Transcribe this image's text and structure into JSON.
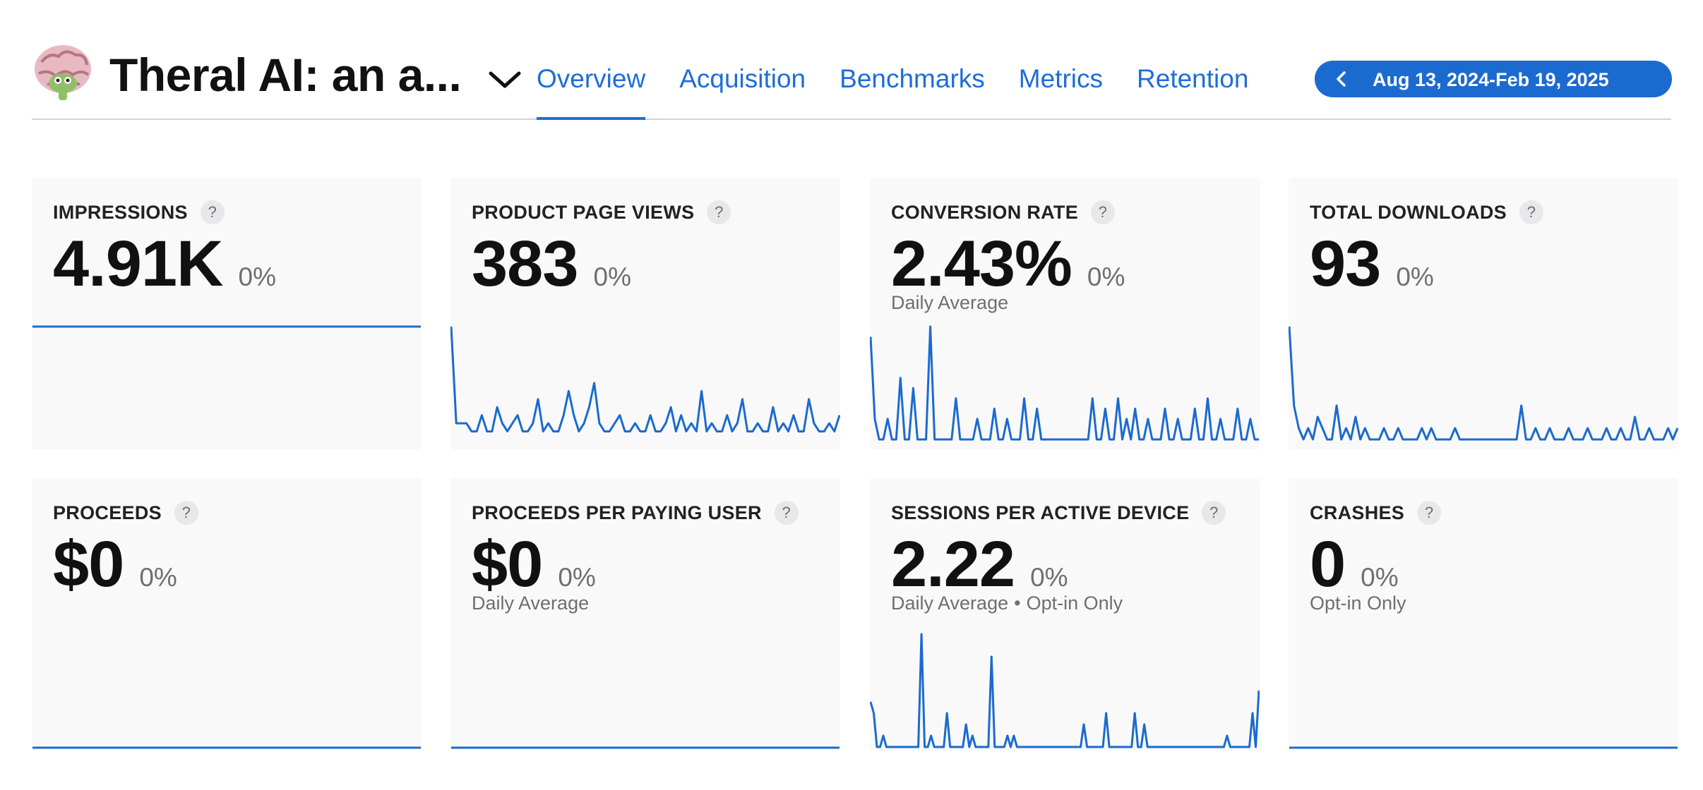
{
  "app": {
    "title": "Theral AI: an a...",
    "icon": "brain-emoji-icon"
  },
  "tabs": [
    {
      "label": "Overview",
      "active": true
    },
    {
      "label": "Acquisition",
      "active": false
    },
    {
      "label": "Benchmarks",
      "active": false
    },
    {
      "label": "Metrics",
      "active": false
    },
    {
      "label": "Retention",
      "active": false
    }
  ],
  "date_range": {
    "label": "Aug 13, 2024-Feb 19, 2025"
  },
  "colors": {
    "accent": "#1b6ad0",
    "card_bg": "#f9f9f9",
    "muted": "#6e6e73"
  },
  "help_glyph": "?",
  "cards": [
    {
      "label": "IMPRESSIONS",
      "value": "4.91K",
      "change": "0%",
      "note": "",
      "spark": [
        16,
        16,
        16,
        16,
        16,
        16,
        16,
        16,
        16,
        16,
        16,
        16,
        16,
        16,
        16,
        16,
        16,
        16,
        16,
        16,
        16,
        16,
        16,
        16,
        16,
        16,
        16,
        16,
        16,
        16,
        16,
        16,
        16,
        16,
        16,
        16,
        16,
        16,
        16,
        16,
        16,
        16,
        16,
        16,
        16,
        16,
        16,
        16,
        16,
        16,
        16,
        16,
        16,
        16,
        16,
        16,
        16,
        16,
        16,
        16,
        16,
        16,
        16,
        16,
        16,
        16,
        16,
        16,
        16,
        16,
        16,
        16,
        16,
        16,
        16,
        16,
        16,
        16,
        16,
        16,
        16,
        16,
        16,
        16,
        16,
        16,
        16,
        16,
        16,
        16,
        16,
        16,
        16,
        16,
        16,
        16,
        16,
        16,
        16,
        16,
        16,
        16,
        16,
        16,
        16,
        16,
        16,
        16,
        16,
        16,
        16,
        16,
        16,
        16,
        16,
        16,
        16,
        16,
        16,
        16,
        16,
        16,
        16,
        16,
        16,
        16,
        16,
        16,
        16,
        16,
        16,
        16,
        16,
        16,
        16,
        16,
        16,
        16,
        16,
        16,
        16,
        16,
        16,
        16,
        16,
        16,
        16,
        16,
        16,
        16,
        16,
        16,
        16,
        16,
        16,
        16,
        16,
        16,
        16,
        16,
        16,
        16,
        16,
        16,
        16,
        16,
        16,
        16,
        16,
        16,
        16,
        16,
        16,
        16,
        16,
        16,
        16,
        16,
        16,
        16,
        16,
        16,
        16,
        16,
        16,
        16,
        16,
        16,
        16,
        16,
        16
      ]
    },
    {
      "label": "PRODUCT PAGE VIEWS",
      "value": "383",
      "change": "0%",
      "note": "",
      "spark": [
        14,
        2,
        2,
        2,
        1,
        1,
        3,
        1,
        1,
        4,
        2,
        1,
        2,
        3,
        1,
        1,
        2,
        5,
        1,
        2,
        1,
        1,
        3,
        6,
        3,
        1,
        2,
        4,
        7,
        2,
        1,
        1,
        2,
        3,
        1,
        1,
        2,
        1,
        1,
        3,
        1,
        1,
        2,
        4,
        1,
        3,
        1,
        2,
        1,
        6,
        1,
        2,
        1,
        1,
        3,
        1,
        2,
        5,
        1,
        1,
        2,
        1,
        1,
        4,
        1,
        2,
        1,
        3,
        1,
        1,
        5,
        2,
        1,
        1,
        2,
        1,
        3
      ]
    },
    {
      "label": "CONVERSION RATE",
      "value": "2.43%",
      "change": "0%",
      "note": "Daily Average",
      "spark": [
        10,
        2,
        0,
        0,
        2,
        0,
        0,
        6,
        0,
        0,
        5,
        0,
        0,
        0,
        11,
        0,
        0,
        0,
        0,
        0,
        4,
        0,
        0,
        0,
        0,
        2,
        0,
        0,
        0,
        3,
        0,
        0,
        2,
        0,
        0,
        0,
        4,
        0,
        0,
        3,
        0,
        0,
        0,
        0,
        0,
        0,
        0,
        0,
        0,
        0,
        0,
        0,
        4,
        0,
        0,
        3,
        0,
        0,
        4,
        0,
        2,
        0,
        3,
        0,
        0,
        2,
        0,
        0,
        0,
        3,
        0,
        0,
        2,
        0,
        0,
        0,
        3,
        0,
        0,
        4,
        0,
        0,
        2,
        0,
        0,
        0,
        3,
        0,
        0,
        2,
        0,
        0
      ]
    },
    {
      "label": "TOTAL DOWNLOADS",
      "value": "93",
      "change": "0%",
      "note": "",
      "spark": [
        10,
        3,
        1,
        0,
        1,
        0,
        2,
        1,
        0,
        0,
        3,
        0,
        1,
        0,
        2,
        0,
        1,
        0,
        0,
        0,
        1,
        0,
        0,
        1,
        0,
        0,
        0,
        0,
        1,
        0,
        1,
        0,
        0,
        0,
        0,
        1,
        0,
        0,
        0,
        0,
        0,
        0,
        0,
        0,
        0,
        0,
        0,
        0,
        0,
        3,
        0,
        0,
        1,
        0,
        0,
        1,
        0,
        0,
        0,
        1,
        0,
        0,
        0,
        1,
        0,
        0,
        0,
        1,
        0,
        0,
        1,
        0,
        0,
        2,
        0,
        0,
        1,
        0,
        0,
        0,
        1,
        0,
        1
      ]
    },
    {
      "label": "PROCEEDS",
      "value": "$0",
      "change": "0%",
      "note": "",
      "spark": [
        0,
        0,
        0,
        0,
        0,
        0,
        0,
        0,
        0,
        0,
        0,
        0,
        0,
        0,
        0,
        0,
        0,
        0,
        0,
        0
      ]
    },
    {
      "label": "PROCEEDS PER PAYING USER",
      "value": "$0",
      "change": "0%",
      "note": "Daily Average",
      "spark": [
        0,
        0,
        0,
        0,
        0,
        0,
        0,
        0,
        0,
        0,
        0,
        0,
        0,
        0,
        0,
        0,
        0,
        0,
        0,
        0
      ]
    },
    {
      "label": "SESSIONS PER ACTIVE DEVICE",
      "value": "2.22",
      "change": "0%",
      "note": "Daily Average",
      "note2": "Opt-in Only",
      "spark": [
        4,
        3,
        0,
        0,
        1,
        0,
        0,
        0,
        0,
        0,
        0,
        0,
        0,
        0,
        0,
        0,
        10,
        0,
        0,
        1,
        0,
        0,
        0,
        0,
        3,
        0,
        0,
        0,
        0,
        0,
        2,
        0,
        1,
        0,
        0,
        0,
        0,
        0,
        8,
        0,
        0,
        0,
        0,
        1,
        0,
        1,
        0,
        0,
        0,
        0,
        0,
        0,
        0,
        0,
        0,
        0,
        0,
        0,
        0,
        0,
        0,
        0,
        0,
        0,
        0,
        0,
        0,
        2,
        0,
        0,
        0,
        0,
        0,
        0,
        3,
        0,
        0,
        0,
        0,
        0,
        0,
        0,
        0,
        3,
        0,
        0,
        2,
        0,
        0,
        0,
        0,
        0,
        0,
        0,
        0,
        0,
        0,
        0,
        0,
        0,
        0,
        0,
        0,
        0,
        0,
        0,
        0,
        0,
        0,
        0,
        0,
        0,
        1,
        0,
        0,
        0,
        0,
        0,
        0,
        0,
        3,
        0,
        5
      ]
    },
    {
      "label": "CRASHES",
      "value": "0",
      "change": "0%",
      "note": "Opt-in Only",
      "spark": [
        0,
        0,
        0,
        0,
        0,
        0,
        0,
        0,
        0,
        0,
        0,
        0,
        0,
        0,
        0,
        0,
        0,
        0,
        0,
        0
      ]
    }
  ]
}
